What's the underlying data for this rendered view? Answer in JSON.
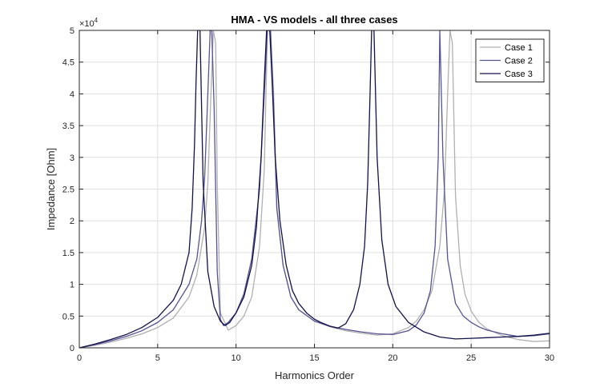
{
  "chart_data": {
    "type": "line",
    "title": "HMA - VS models - all three cases",
    "xlabel": "Harmonics Order",
    "ylabel": "Impedance [Ohm]",
    "xlim": [
      0,
      30
    ],
    "ylim": [
      0,
      50000
    ],
    "y_multiplier_label": "×10",
    "y_multiplier_exponent": "4",
    "x_ticks": [
      0,
      5,
      10,
      15,
      20,
      25,
      30
    ],
    "y_ticks": [
      0,
      5000,
      10000,
      15000,
      20000,
      25000,
      30000,
      35000,
      40000,
      45000,
      50000
    ],
    "y_tick_labels": [
      "0",
      "0.5",
      "1",
      "1.5",
      "2",
      "2.5",
      "3",
      "3.5",
      "4",
      "4.5",
      "5"
    ],
    "grid": true,
    "legend_position": "top-right",
    "series": [
      {
        "name": "Case 1",
        "color": "#b0b0b0",
        "x": [
          0,
          1,
          2,
          3,
          4,
          5,
          6,
          7,
          7.5,
          8,
          8.2,
          8.4,
          8.55,
          8.7,
          8.8,
          9.0,
          9.5,
          10,
          10.5,
          11,
          11.5,
          11.8,
          12.0,
          12.2,
          12.4,
          12.6,
          13,
          13.5,
          14,
          15,
          16,
          17,
          18,
          19,
          20,
          21,
          21.5,
          22,
          22.5,
          23,
          23.3,
          23.5,
          23.65,
          23.8,
          24,
          24.3,
          24.6,
          25,
          25.5,
          26,
          27,
          28,
          29,
          30
        ],
        "y": [
          0,
          400,
          900,
          1500,
          2200,
          3200,
          4700,
          8000,
          11500,
          19000,
          26000,
          40000,
          50000,
          48000,
          26000,
          5500,
          2800,
          3500,
          5000,
          8000,
          16000,
          28000,
          50000,
          50000,
          40000,
          22000,
          13000,
          8000,
          6000,
          4200,
          3300,
          2700,
          2300,
          2000,
          2200,
          3200,
          4200,
          6000,
          9000,
          16000,
          25000,
          40000,
          50000,
          48000,
          24000,
          13000,
          8500,
          5800,
          4000,
          3000,
          1900,
          1300,
          1000,
          1100
        ]
      },
      {
        "name": "Case 2",
        "color": "#545494",
        "x": [
          0,
          1,
          2,
          3,
          4,
          5,
          6,
          7,
          7.5,
          7.8,
          8.0,
          8.2,
          8.35,
          8.45,
          8.6,
          8.8,
          9.0,
          9.2,
          9.5,
          10,
          10.5,
          11,
          11.5,
          11.8,
          12.0,
          12.2,
          12.4,
          12.6,
          13,
          13.5,
          14,
          15,
          16,
          17,
          18,
          19,
          20,
          21,
          21.5,
          22,
          22.4,
          22.7,
          22.9,
          23.0,
          23.2,
          23.5,
          24,
          24.5,
          25,
          25.5,
          26,
          27,
          28,
          29,
          30
        ],
        "y": [
          0,
          500,
          1100,
          1800,
          2700,
          4000,
          6000,
          10000,
          14000,
          20000,
          27000,
          40000,
          50000,
          50000,
          38000,
          12000,
          4500,
          3500,
          4000,
          5500,
          8500,
          14000,
          25000,
          40000,
          50000,
          50000,
          38000,
          22000,
          13000,
          8000,
          6000,
          4200,
          3400,
          2900,
          2500,
          2200,
          2100,
          2700,
          3600,
          5500,
          9000,
          16000,
          30000,
          50000,
          30000,
          14000,
          7000,
          5000,
          4000,
          3300,
          2800,
          2200,
          1800,
          1900,
          2200
        ]
      },
      {
        "name": "Case 3",
        "color": "#12124a",
        "x": [
          0,
          1,
          2,
          3,
          4,
          5,
          6,
          6.5,
          7,
          7.2,
          7.35,
          7.45,
          7.55,
          7.7,
          7.9,
          8.2,
          8.6,
          9.0,
          9.3,
          9.6,
          10,
          10.5,
          11,
          11.3,
          11.6,
          11.8,
          11.95,
          12.05,
          12.15,
          12.3,
          12.5,
          12.8,
          13.2,
          13.6,
          14,
          14.5,
          15,
          15.5,
          16,
          16.5,
          17,
          17.5,
          17.9,
          18.2,
          18.4,
          18.55,
          18.65,
          18.8,
          19.0,
          19.3,
          19.7,
          20.2,
          21,
          22,
          23,
          24,
          25,
          26,
          27,
          28,
          29,
          30
        ],
        "y": [
          0,
          600,
          1300,
          2100,
          3200,
          4800,
          7500,
          10000,
          15000,
          22000,
          32000,
          42000,
          50000,
          50000,
          26000,
          12000,
          6500,
          4200,
          3500,
          4000,
          5500,
          8000,
          13000,
          19000,
          30000,
          42000,
          50000,
          50000,
          50000,
          42000,
          30000,
          20000,
          13000,
          9000,
          7000,
          5500,
          4500,
          3900,
          3400,
          3100,
          3800,
          6000,
          10000,
          16000,
          26000,
          40000,
          50000,
          50000,
          30000,
          17000,
          10000,
          6500,
          4000,
          2500,
          1700,
          1400,
          1500,
          1600,
          1700,
          1800,
          2000,
          2300
        ]
      }
    ]
  }
}
